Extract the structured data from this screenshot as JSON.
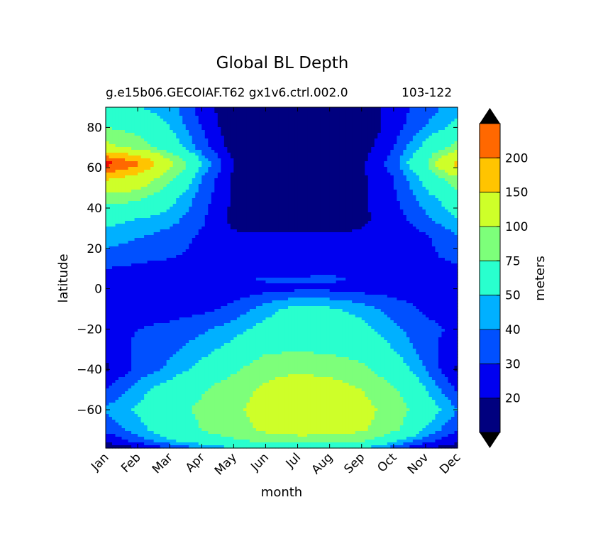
{
  "title": "Global BL Depth",
  "subtitle_left": "g.e15b06.GECOIAF.T62 gx1v6.ctrl.002.0",
  "subtitle_right": "103-122",
  "chart_data": {
    "type": "heatmap",
    "subtype": "filled-contour",
    "xlabel": "month",
    "ylabel": "latitude",
    "colorbar_label": "meters",
    "x_ticks": [
      "Jan",
      "Feb",
      "Mar",
      "Apr",
      "May",
      "Jun",
      "Jul",
      "Aug",
      "Sep",
      "Oct",
      "Nov",
      "Dec"
    ],
    "y_ticks": [
      80,
      60,
      40,
      20,
      0,
      -20,
      -40,
      -60
    ],
    "ylim": [
      -79,
      90
    ],
    "levels": [
      20,
      30,
      40,
      50,
      75,
      100,
      150,
      200,
      250,
      300
    ],
    "level_colors": [
      "#00007f",
      "#0000f0",
      "#0050ff",
      "#00b0ff",
      "#29ffce",
      "#7dff7a",
      "#ceff29",
      "#ffc400",
      "#ff6800",
      "#f10800",
      "#7f0000"
    ],
    "extend": "both",
    "latitudes": [
      90,
      80,
      70,
      62,
      55,
      45,
      35,
      25,
      15,
      10,
      5,
      0,
      -10,
      -20,
      -30,
      -40,
      -50,
      -60,
      -70,
      -75,
      -79
    ],
    "values": [
      [
        55,
        50,
        45,
        25,
        12,
        10,
        10,
        10,
        12,
        25,
        35,
        45
      ],
      [
        75,
        65,
        50,
        30,
        12,
        10,
        10,
        10,
        12,
        25,
        40,
        55
      ],
      [
        110,
        90,
        60,
        35,
        15,
        10,
        10,
        10,
        15,
        30,
        55,
        85
      ],
      [
        270,
        210,
        110,
        50,
        20,
        12,
        12,
        12,
        18,
        35,
        70,
        170
      ],
      [
        160,
        130,
        80,
        40,
        18,
        12,
        12,
        12,
        18,
        30,
        55,
        95
      ],
      [
        85,
        80,
        55,
        35,
        18,
        12,
        12,
        12,
        18,
        28,
        45,
        60
      ],
      [
        55,
        50,
        45,
        32,
        17,
        14,
        14,
        14,
        18,
        25,
        38,
        50
      ],
      [
        45,
        40,
        35,
        28,
        22,
        22,
        22,
        22,
        22,
        22,
        28,
        38
      ],
      [
        35,
        32,
        30,
        28,
        26,
        26,
        26,
        26,
        26,
        26,
        28,
        32
      ],
      [
        30,
        28,
        26,
        26,
        26,
        22,
        22,
        26,
        26,
        26,
        26,
        28
      ],
      [
        26,
        25,
        25,
        25,
        26,
        32,
        32,
        32,
        28,
        26,
        25,
        26
      ],
      [
        25,
        25,
        24,
        24,
        24,
        26,
        28,
        28,
        26,
        25,
        24,
        25
      ],
      [
        24,
        24,
        25,
        27,
        33,
        45,
        55,
        52,
        45,
        36,
        28,
        25
      ],
      [
        28,
        30,
        33,
        38,
        45,
        55,
        62,
        60,
        55,
        42,
        33,
        28
      ],
      [
        22,
        32,
        38,
        45,
        55,
        70,
        72,
        70,
        65,
        50,
        35,
        22
      ],
      [
        18,
        33,
        42,
        55,
        70,
        90,
        95,
        90,
        80,
        60,
        40,
        18
      ],
      [
        30,
        45,
        58,
        72,
        90,
        105,
        120,
        115,
        100,
        78,
        50,
        28
      ],
      [
        42,
        52,
        65,
        80,
        95,
        110,
        118,
        118,
        110,
        90,
        60,
        40
      ],
      [
        32,
        45,
        60,
        75,
        90,
        105,
        112,
        112,
        105,
        80,
        48,
        30
      ],
      [
        22,
        35,
        50,
        62,
        72,
        85,
        90,
        88,
        80,
        55,
        35,
        22
      ],
      [
        15,
        18,
        30,
        40,
        48,
        55,
        58,
        55,
        50,
        35,
        20,
        15
      ]
    ]
  }
}
